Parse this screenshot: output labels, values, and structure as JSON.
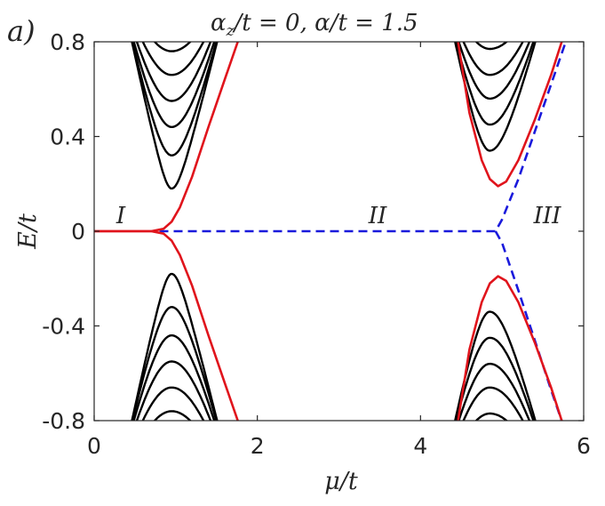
{
  "panel_label": "a)",
  "title": {
    "alpha": "α",
    "z": "z",
    "part1": "/t = 0,  ",
    "part2": "α/t = 1.5"
  },
  "axes": {
    "xlabel": "μ/t",
    "ylabel": "E/t"
  },
  "regions": [
    "I",
    "II",
    "III"
  ],
  "colors": {
    "bulk_bands": "#000000",
    "lowest_band": "#e0141c",
    "zero_mode": "#1a1adc",
    "axes": "#262626"
  },
  "chart_data": {
    "type": "line",
    "title": "αz/t = 0, α/t = 1.5",
    "xlabel": "μ/t",
    "ylabel": "E/t",
    "xlim": [
      0,
      6
    ],
    "ylim": [
      -0.8,
      0.8
    ],
    "xticks": [
      0,
      2,
      4,
      6
    ],
    "xtick_labels": [
      "0",
      "2",
      "4",
      "6"
    ],
    "yticks": [
      -0.8,
      -0.4,
      0,
      0.4,
      0.8
    ],
    "ytick_labels": [
      "-0.8",
      "-0.4",
      "0",
      "0.4",
      "0.8"
    ],
    "grid": false,
    "legend": "none",
    "region_annotations": [
      {
        "text": "I",
        "x": 0.3,
        "y": 0.07
      },
      {
        "text": "II",
        "x": 3.45,
        "y": 0.07
      },
      {
        "text": "III",
        "x": 5.4,
        "y": 0.07
      }
    ],
    "series": [
      {
        "style": "dashed",
        "color": "blue",
        "x": [
          0.8,
          1.0,
          2.0,
          3.0,
          4.0,
          4.8,
          4.92,
          5.0,
          5.2,
          5.4,
          5.6,
          5.8
        ],
        "y": [
          0,
          0,
          0,
          0,
          0,
          0,
          0.0,
          0.05,
          0.22,
          0.42,
          0.62,
          0.82
        ]
      },
      {
        "style": "dashed",
        "color": "blue",
        "x": [
          4.92,
          5.0,
          5.2,
          5.4,
          5.6,
          5.75
        ],
        "y": [
          0.0,
          -0.05,
          -0.25,
          -0.46,
          -0.67,
          -0.82
        ]
      },
      {
        "style": "solid",
        "color": "red",
        "x": [
          0.0,
          0.4,
          0.7,
          0.85,
          0.95,
          1.05,
          1.2,
          1.4,
          1.6,
          1.8
        ],
        "y": [
          0,
          0,
          0.0,
          0.01,
          0.04,
          0.1,
          0.23,
          0.44,
          0.64,
          0.84
        ]
      },
      {
        "style": "solid",
        "color": "red",
        "x": [
          0.0,
          0.4,
          0.7,
          0.85,
          0.95,
          1.05,
          1.2,
          1.4,
          1.6,
          1.8
        ],
        "y": [
          0,
          0,
          0.0,
          -0.01,
          -0.04,
          -0.1,
          -0.23,
          -0.44,
          -0.64,
          -0.84
        ]
      },
      {
        "style": "solid",
        "color": "red",
        "x": [
          4.45,
          4.6,
          4.75,
          4.85,
          4.95,
          5.05,
          5.2,
          5.4,
          5.6,
          5.75
        ],
        "y": [
          0.82,
          0.5,
          0.3,
          0.22,
          0.19,
          0.21,
          0.3,
          0.47,
          0.66,
          0.82
        ]
      },
      {
        "style": "solid",
        "color": "red",
        "x": [
          4.45,
          4.6,
          4.75,
          4.85,
          4.95,
          5.05,
          5.2,
          5.4,
          5.6,
          5.75
        ],
        "y": [
          -0.82,
          -0.5,
          -0.3,
          -0.22,
          -0.19,
          -0.21,
          -0.3,
          -0.47,
          -0.66,
          -0.82
        ]
      }
    ],
    "bulk_band_minima_left": [
      0.18,
      0.32,
      0.44,
      0.55,
      0.66,
      0.76
    ],
    "bulk_band_minima_right": [
      0.34,
      0.45,
      0.56,
      0.66,
      0.77
    ]
  }
}
